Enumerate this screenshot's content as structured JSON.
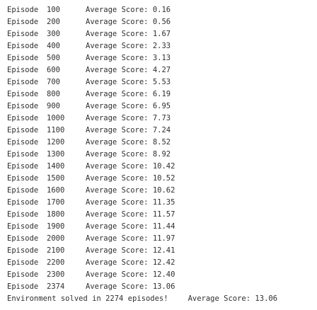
{
  "console": {
    "rows": [
      {
        "episode_label": "Episode",
        "episode": "100",
        "score_label": "Average Score:",
        "score": "0.16"
      },
      {
        "episode_label": "Episode",
        "episode": "200",
        "score_label": "Average Score:",
        "score": "0.56"
      },
      {
        "episode_label": "Episode",
        "episode": "300",
        "score_label": "Average Score:",
        "score": "1.67"
      },
      {
        "episode_label": "Episode",
        "episode": "400",
        "score_label": "Average Score:",
        "score": "2.33"
      },
      {
        "episode_label": "Episode",
        "episode": "500",
        "score_label": "Average Score:",
        "score": "3.13"
      },
      {
        "episode_label": "Episode",
        "episode": "600",
        "score_label": "Average Score:",
        "score": "4.27"
      },
      {
        "episode_label": "Episode",
        "episode": "700",
        "score_label": "Average Score:",
        "score": "5.53"
      },
      {
        "episode_label": "Episode",
        "episode": "800",
        "score_label": "Average Score:",
        "score": "6.19"
      },
      {
        "episode_label": "Episode",
        "episode": "900",
        "score_label": "Average Score:",
        "score": "6.95"
      },
      {
        "episode_label": "Episode",
        "episode": "1000",
        "score_label": "Average Score:",
        "score": "7.73"
      },
      {
        "episode_label": "Episode",
        "episode": "1100",
        "score_label": "Average Score:",
        "score": "7.24"
      },
      {
        "episode_label": "Episode",
        "episode": "1200",
        "score_label": "Average Score:",
        "score": "8.52"
      },
      {
        "episode_label": "Episode",
        "episode": "1300",
        "score_label": "Average Score:",
        "score": "8.92"
      },
      {
        "episode_label": "Episode",
        "episode": "1400",
        "score_label": "Average Score:",
        "score": "10.42"
      },
      {
        "episode_label": "Episode",
        "episode": "1500",
        "score_label": "Average Score:",
        "score": "10.52"
      },
      {
        "episode_label": "Episode",
        "episode": "1600",
        "score_label": "Average Score:",
        "score": "10.62"
      },
      {
        "episode_label": "Episode",
        "episode": "1700",
        "score_label": "Average Score:",
        "score": "11.35"
      },
      {
        "episode_label": "Episode",
        "episode": "1800",
        "score_label": "Average Score:",
        "score": "11.57"
      },
      {
        "episode_label": "Episode",
        "episode": "1900",
        "score_label": "Average Score:",
        "score": "11.44"
      },
      {
        "episode_label": "Episode",
        "episode": "2000",
        "score_label": "Average Score:",
        "score": "11.97"
      },
      {
        "episode_label": "Episode",
        "episode": "2100",
        "score_label": "Average Score:",
        "score": "12.41"
      },
      {
        "episode_label": "Episode",
        "episode": "2200",
        "score_label": "Average Score:",
        "score": "12.42"
      },
      {
        "episode_label": "Episode",
        "episode": "2300",
        "score_label": "Average Score:",
        "score": "12.40"
      },
      {
        "episode_label": "Episode",
        "episode": "2374",
        "score_label": "Average Score:",
        "score": "13.06"
      }
    ],
    "final": {
      "message": "Environment solved in 2274 episodes!",
      "score_label": "Average Score:",
      "score": "13.06"
    }
  }
}
